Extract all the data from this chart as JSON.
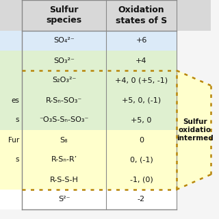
{
  "col_headers": [
    "Sulfur\nspecies",
    "Oxidation\nstates of S"
  ],
  "rows": [
    {
      "species": "SO₄²⁻",
      "oxidation": "+6",
      "bg": "blue_light"
    },
    {
      "species": "SO₃²⁻",
      "oxidation": "+4",
      "bg": "green_light"
    },
    {
      "species": "S₂O₃²⁻",
      "oxidation": "+4, 0 (+5, -1)",
      "bg": "green_light"
    },
    {
      "species": "R-Sₙ-SO₃⁻",
      "oxidation": "+5, 0, (-1)",
      "bg": "green_light"
    },
    {
      "species": "⁻O₃S-Sₙ-SO₃⁻",
      "oxidation": "+5, 0",
      "bg": "green_light"
    },
    {
      "species": "S₈",
      "oxidation": "0",
      "bg": "yellow_light"
    },
    {
      "species": "R-Sₙ-R’",
      "oxidation": "0, (-1)",
      "bg": "yellow_light"
    },
    {
      "species": "R-S-S-H",
      "oxidation": "-1, (0)",
      "bg": "yellow_light"
    },
    {
      "species": "S²⁻",
      "oxidation": "-2",
      "bg": "white"
    }
  ],
  "left_labels": [
    "",
    "",
    "",
    "es",
    "s",
    "Fur",
    "s",
    "",
    ""
  ],
  "side_label": "Sulfur\noxidatio\nintermed",
  "colors": {
    "blue_light": "#dbeaf8",
    "green_light": "#dff0d0",
    "yellow_light": "#ffffcc",
    "white": "#ffffff",
    "header_bg": "#d8d8d8",
    "border": "#888888",
    "dotted": "#b8860b",
    "text": "#111111"
  },
  "figw": 3.2,
  "figh": 3.2,
  "dpi": 100
}
